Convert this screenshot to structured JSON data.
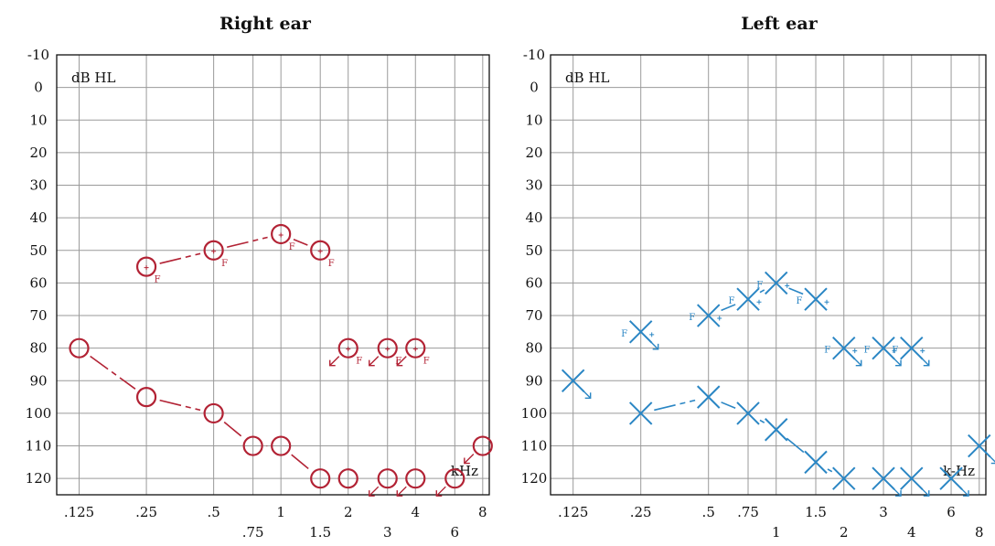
{
  "colors": {
    "right_ear": "#b22234",
    "left_ear": "#2a86c4",
    "grid": "#9a9a9a"
  },
  "chart_data": [
    {
      "type": "scatter",
      "panel": "right",
      "title": "Right ear",
      "ylabel": "dB HL",
      "xlabel": "kHz",
      "ylim": [
        125,
        -10
      ],
      "y_ticks": [
        "-10",
        "0",
        "10",
        "20",
        "30",
        "40",
        "50",
        "60",
        "70",
        "80",
        "90",
        "100",
        "110",
        "120"
      ],
      "x_ticks_upper": [
        {
          "f": 0.125,
          "label": ".125"
        },
        {
          "f": 0.25,
          "label": ".25"
        },
        {
          "f": 0.5,
          "label": ".5"
        },
        {
          "f": 1,
          "label": "1"
        },
        {
          "f": 2,
          "label": "2"
        },
        {
          "f": 4,
          "label": "4"
        },
        {
          "f": 8,
          "label": "8"
        }
      ],
      "x_ticks_lower": [
        {
          "f": 0.75,
          "label": ".75"
        },
        {
          "f": 1.5,
          "label": "1.5"
        },
        {
          "f": 3,
          "label": "3"
        },
        {
          "f": 6,
          "label": "6"
        }
      ],
      "series": [
        {
          "symbol": "O",
          "points": [
            [
              0.25,
              55
            ],
            [
              0.5,
              50
            ],
            [
              1,
              45
            ],
            [
              1.5,
              50
            ],
            [
              2,
              80
            ],
            [
              3,
              80
            ],
            [
              4,
              80
            ]
          ],
          "annotation": "F",
          "segments": [
            [
              0,
              1
            ],
            [
              1,
              2
            ],
            [
              2,
              3
            ]
          ],
          "no_response": [
            4,
            5,
            6
          ]
        },
        {
          "symbol": "O",
          "points": [
            [
              0.125,
              80
            ],
            [
              0.25,
              95
            ],
            [
              0.5,
              100
            ],
            [
              0.75,
              110
            ],
            [
              1,
              110
            ],
            [
              1.5,
              120
            ],
            [
              2,
              120
            ],
            [
              3,
              120
            ],
            [
              4,
              120
            ],
            [
              6,
              120
            ],
            [
              8,
              110
            ]
          ],
          "segments": [
            [
              0,
              1
            ],
            [
              1,
              2
            ],
            [
              2,
              3
            ],
            [
              3,
              4
            ],
            [
              4,
              5
            ]
          ],
          "no_response": [
            7,
            8,
            9,
            10
          ]
        }
      ]
    },
    {
      "type": "scatter",
      "panel": "left",
      "title": "Left ear",
      "ylabel": "dB HL",
      "xlabel": "k-Hz",
      "ylim": [
        125,
        -10
      ],
      "y_ticks": [
        "-10",
        "0",
        "10",
        "20",
        "30",
        "40",
        "50",
        "60",
        "70",
        "80",
        "90",
        "100",
        "110",
        "120"
      ],
      "x_ticks_upper": [
        {
          "f": 0.125,
          "label": ".125"
        },
        {
          "f": 0.25,
          "label": ".25"
        },
        {
          "f": 0.5,
          "label": ".5"
        },
        {
          "f": 0.75,
          "label": ".75"
        },
        {
          "f": 1.5,
          "label": "1.5"
        },
        {
          "f": 3,
          "label": "3"
        },
        {
          "f": 6,
          "label": "6"
        }
      ],
      "x_ticks_lower": [
        {
          "f": 1,
          "label": "1"
        },
        {
          "f": 2,
          "label": "2"
        },
        {
          "f": 4,
          "label": "4"
        },
        {
          "f": 8,
          "label": "8"
        }
      ],
      "series": [
        {
          "symbol": "X",
          "points": [
            [
              0.25,
              75
            ],
            [
              0.5,
              70
            ],
            [
              0.75,
              65
            ],
            [
              1,
              60
            ],
            [
              1.5,
              65
            ],
            [
              2,
              80
            ],
            [
              3,
              80
            ],
            [
              4,
              80
            ]
          ],
          "annotation": "F",
          "segments": [
            [
              1,
              2
            ],
            [
              2,
              3
            ],
            [
              3,
              4
            ]
          ],
          "no_response": [
            0,
            5,
            6,
            7
          ]
        },
        {
          "symbol": "X",
          "points": [
            [
              0.125,
              90
            ],
            [
              0.25,
              100
            ],
            [
              0.5,
              95
            ],
            [
              0.75,
              100
            ],
            [
              1,
              105
            ],
            [
              1.5,
              115
            ],
            [
              2,
              120
            ],
            [
              3,
              120
            ],
            [
              4,
              120
            ],
            [
              6,
              120
            ],
            [
              8,
              110
            ]
          ],
          "segments": [
            [
              1,
              2
            ],
            [
              2,
              3
            ],
            [
              3,
              4
            ],
            [
              4,
              5
            ],
            [
              5,
              6
            ]
          ],
          "no_response": [
            0,
            7,
            8,
            9,
            10
          ]
        }
      ]
    }
  ]
}
